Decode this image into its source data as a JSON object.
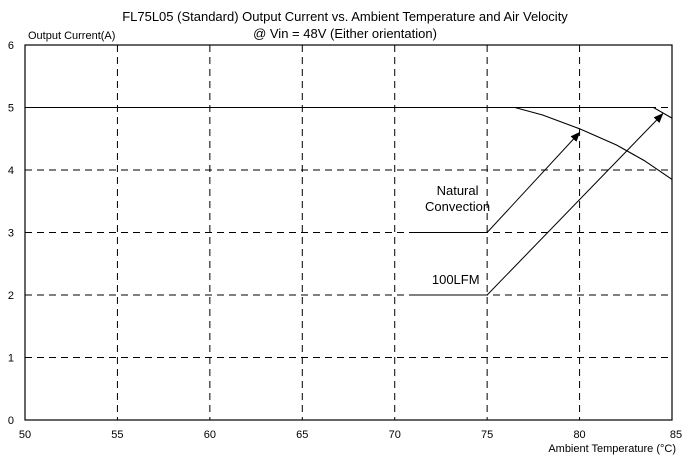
{
  "chart_data": {
    "type": "line",
    "title": "FL75L05 (Standard) Output Current vs. Ambient Temperature and Air Velocity",
    "subtitle": "@ Vin = 48V (Either orientation)",
    "xlabel": "Ambient Temperature (°C)",
    "ylabel": "Output Current(A)",
    "xlim": [
      50,
      85
    ],
    "ylim": [
      0,
      6
    ],
    "xticks": [
      50,
      55,
      60,
      65,
      70,
      75,
      80,
      85
    ],
    "yticks": [
      0,
      1,
      2,
      3,
      4,
      5,
      6
    ],
    "grid": true,
    "series": [
      {
        "name": "Natural Convection",
        "x": [
          50,
          76.5,
          78,
          80,
          82,
          83.5,
          85
        ],
        "y": [
          5,
          5,
          4.88,
          4.66,
          4.4,
          4.15,
          3.85
        ]
      },
      {
        "name": "100LFM",
        "x": [
          50,
          84,
          85
        ],
        "y": [
          5,
          5,
          4.83
        ]
      }
    ],
    "annotations": [
      {
        "text": [
          "Natural",
          "Convection"
        ],
        "label_x": 73.4,
        "label_y": 3.6,
        "leader": [
          [
            70.8,
            3.0
          ],
          [
            75,
            3.0
          ]
        ],
        "arrow": [
          [
            75,
            3.0
          ],
          [
            80,
            4.6
          ]
        ]
      },
      {
        "text": [
          "100LFM"
        ],
        "label_x": 73.3,
        "label_y": 2.18,
        "leader": [
          [
            70.8,
            2.0
          ],
          [
            75,
            2.0
          ]
        ],
        "arrow": [
          [
            75,
            2.0
          ],
          [
            84.5,
            4.9
          ]
        ]
      }
    ]
  }
}
